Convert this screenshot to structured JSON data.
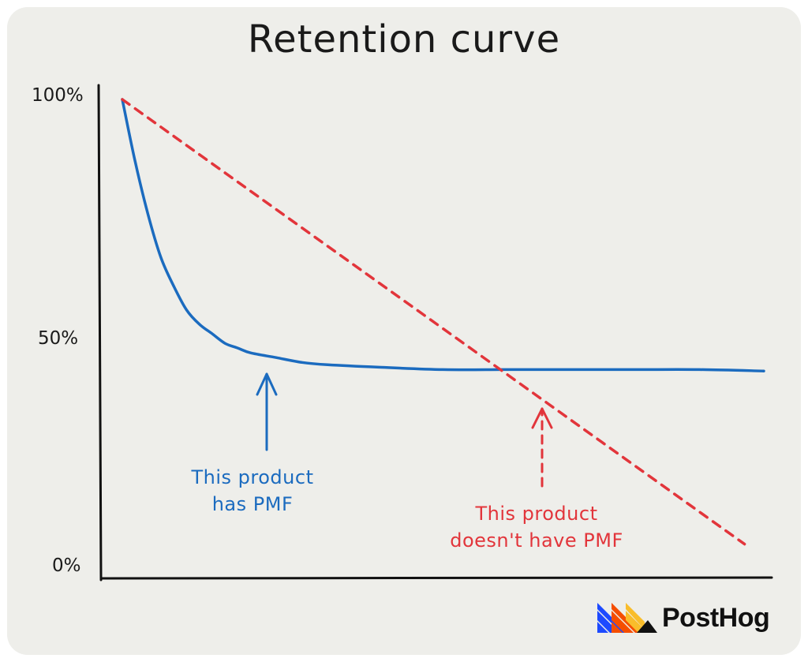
{
  "colors": {
    "background": "#eeeeea",
    "axis": "#111111",
    "pmf_curve": "#1b6bbf",
    "no_pmf_line": "#e2353b"
  },
  "brand": {
    "name": "PostHog",
    "logo_icon": "posthog-hedgehog-logo"
  },
  "annotations": {
    "pmf": {
      "line1": "This product",
      "line2": "has PMF",
      "arrow_icon": "arrow-up-icon"
    },
    "no_pmf": {
      "line1": "This product",
      "line2": "doesn't have PMF",
      "arrow_icon": "dashed-arrow-up-icon"
    }
  },
  "chart_data": {
    "type": "line",
    "title": "Retention curve",
    "xlabel": "",
    "ylabel": "",
    "yticks": [
      "0%",
      "50%",
      "100%"
    ],
    "ylim": [
      0,
      100
    ],
    "xlim": [
      0,
      100
    ],
    "grid": false,
    "series": [
      {
        "style": "solid",
        "color": "#1b6bbf",
        "x": [
          0,
          2,
          4,
          6,
          8,
          10,
          12,
          14,
          16,
          18,
          20,
          24,
          28,
          32,
          40,
          50,
          60,
          70,
          80,
          90,
          100
        ],
        "y": [
          100,
          87,
          76,
          67,
          61,
          56,
          53,
          51,
          49,
          48,
          47,
          46,
          45,
          44.5,
          44,
          43.5,
          43.5,
          43.5,
          43.5,
          43.5,
          43.2
        ]
      },
      {
        "style": "dashed",
        "color": "#e2353b",
        "x": [
          0,
          97
        ],
        "y": [
          100,
          7
        ]
      }
    ]
  }
}
